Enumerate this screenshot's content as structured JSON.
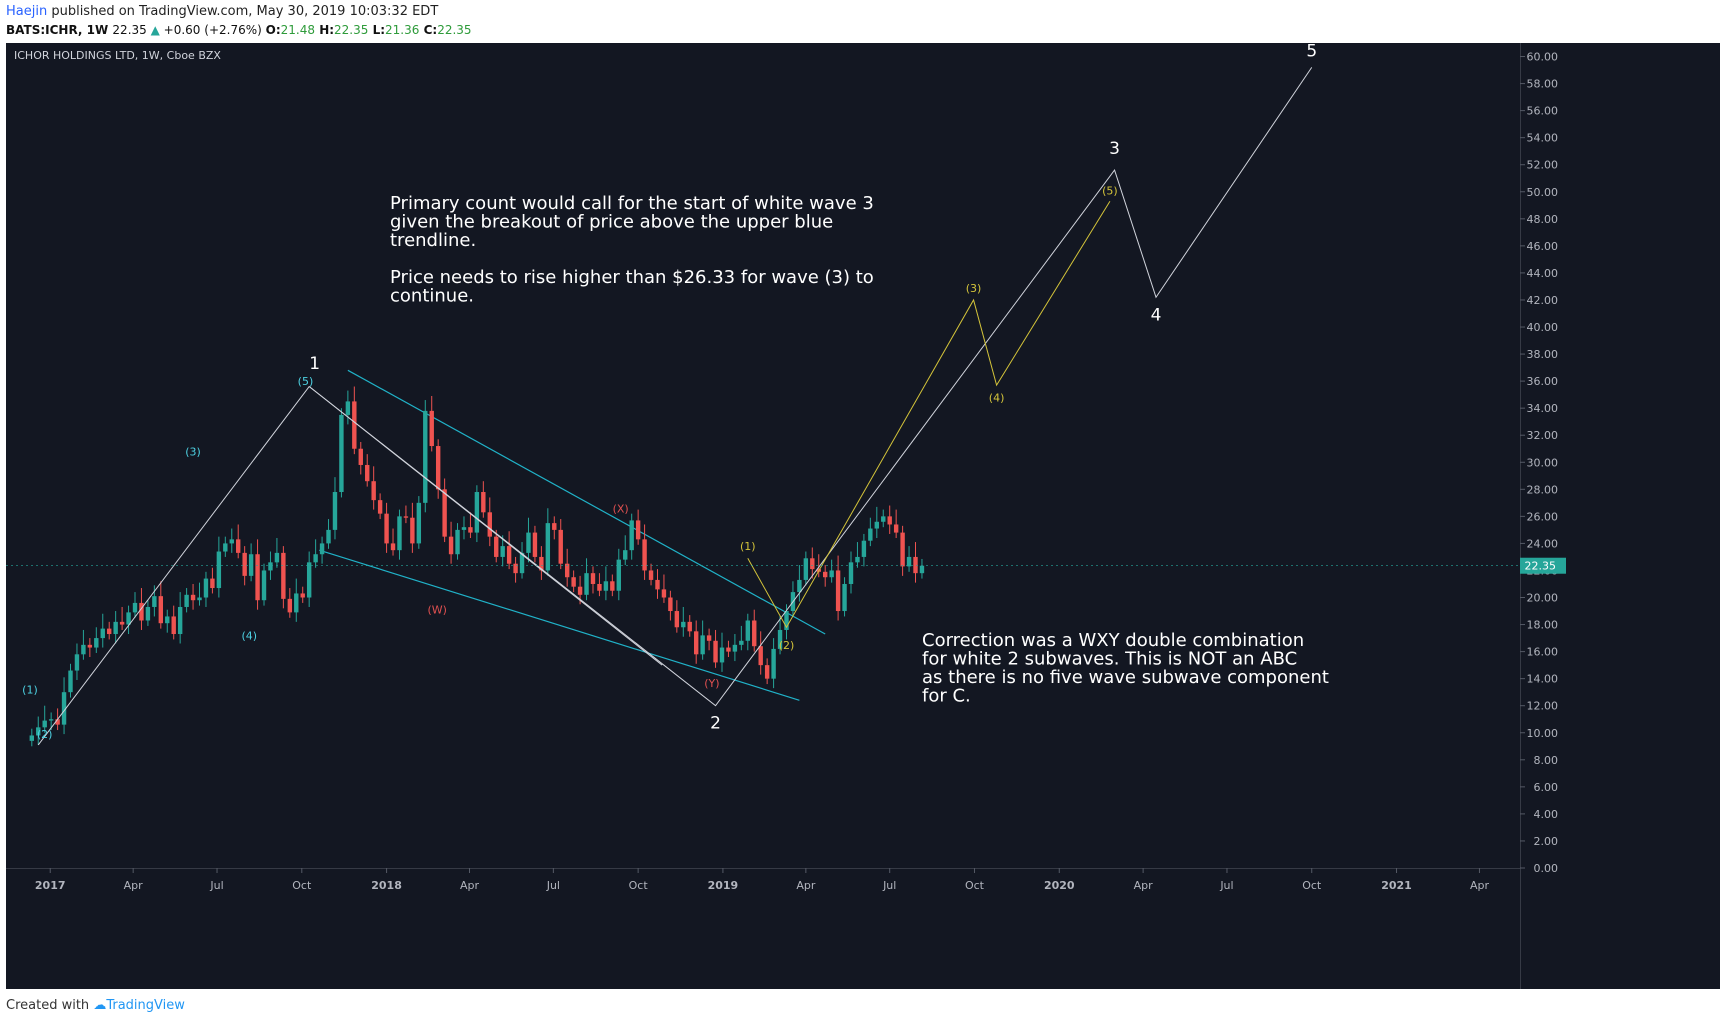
{
  "header": {
    "author": "Haejin",
    "published": "published on TradingView.com, May 30, 2019 10:03:32 EDT",
    "symbol_line": "BATS:ICHR, 1W",
    "last": "22.35",
    "change": "+0.60 (+2.76%)",
    "o_label": "O:",
    "o_val": "21.48",
    "h_label": "H:",
    "h_val": "22.35",
    "l_label": "L:",
    "l_val": "21.36",
    "c_label": "C:",
    "c_val": "22.35"
  },
  "footer": {
    "created_with": "Created with",
    "brand": "TradingView"
  },
  "colors": {
    "background": "#131722",
    "up": "#26a69a",
    "down": "#ef5350",
    "white_wave": "#d1d4dc",
    "yellow_wave": "#d4c43a",
    "trendline": "#20b2c8",
    "cyan_label": "#4dd0e1",
    "red_label": "#e05050"
  },
  "chart_data": {
    "type": "candlestick",
    "title": "ICHOR HOLDINGS LTD, 1W, Cboe BZX",
    "last_price_label": "22.35",
    "y_range": [
      0,
      61
    ],
    "y_ticks": [
      "0.00",
      "2.00",
      "4.00",
      "6.00",
      "8.00",
      "10.00",
      "12.00",
      "14.00",
      "16.00",
      "18.00",
      "20.00",
      "22.00",
      "24.00",
      "26.00",
      "28.00",
      "30.00",
      "32.00",
      "34.00",
      "36.00",
      "38.00",
      "40.00",
      "42.00",
      "44.00",
      "46.00",
      "48.00",
      "50.00",
      "52.00",
      "54.00",
      "56.00",
      "58.00",
      "60.00"
    ],
    "x_range": [
      "2016-11-14",
      "2021-05-15"
    ],
    "x_ticks": [
      {
        "date": "2017-01-01",
        "label": "2017"
      },
      {
        "date": "2017-04-01",
        "label": "Apr"
      },
      {
        "date": "2017-07-01",
        "label": "Jul"
      },
      {
        "date": "2017-10-01",
        "label": "Oct"
      },
      {
        "date": "2018-01-01",
        "label": "2018"
      },
      {
        "date": "2018-04-01",
        "label": "Apr"
      },
      {
        "date": "2018-07-01",
        "label": "Jul"
      },
      {
        "date": "2018-10-01",
        "label": "Oct"
      },
      {
        "date": "2019-01-01",
        "label": "2019"
      },
      {
        "date": "2019-04-01",
        "label": "Apr"
      },
      {
        "date": "2019-07-01",
        "label": "Jul"
      },
      {
        "date": "2019-10-01",
        "label": "Oct"
      },
      {
        "date": "2020-01-01",
        "label": "2020"
      },
      {
        "date": "2020-04-01",
        "label": "Apr"
      },
      {
        "date": "2020-07-01",
        "label": "Jul"
      },
      {
        "date": "2020-10-01",
        "label": "Oct"
      },
      {
        "date": "2021-01-01",
        "label": "2021"
      },
      {
        "date": "2021-04-01",
        "label": "Apr"
      }
    ],
    "weekly_closes": {
      "start_date": "2016-12-12",
      "interval_days": 7,
      "closes": [
        9.8,
        10.4,
        10.9,
        11.0,
        10.6,
        13.0,
        14.6,
        15.8,
        16.5,
        16.3,
        17.0,
        17.7,
        17.3,
        18.2,
        18.0,
        18.9,
        19.6,
        18.3,
        19.3,
        20.1,
        18.1,
        18.6,
        17.3,
        19.3,
        20.2,
        19.8,
        20.0,
        21.4,
        20.7,
        23.4,
        24.0,
        24.3,
        23.3,
        21.6,
        23.2,
        19.8,
        22.0,
        22.6,
        23.3,
        19.9,
        18.9,
        20.3,
        20.0,
        22.6,
        23.2,
        24.0,
        25.0,
        27.8,
        33.5,
        34.5,
        31.0,
        29.8,
        28.6,
        27.2,
        26.2,
        24.0,
        23.5,
        26.0,
        25.9,
        24.0,
        27.0,
        33.8,
        31.2,
        28.0,
        24.5,
        23.2,
        25.0,
        25.2,
        24.8,
        27.8,
        26.3,
        24.5,
        23.0,
        23.8,
        22.5,
        21.8,
        23.3,
        24.8,
        23.0,
        22.0,
        25.5,
        25.0,
        22.5,
        21.5,
        20.8,
        20.2,
        21.8,
        21.0,
        20.5,
        21.2,
        20.5,
        22.8,
        23.5,
        25.7,
        24.3,
        22.0,
        21.3,
        20.6,
        20.0,
        19.0,
        17.8,
        18.2,
        17.5,
        15.8,
        17.2,
        16.8,
        15.2,
        16.3,
        16.0,
        16.5,
        16.8,
        18.3,
        16.4,
        15.0,
        14.0,
        16.2,
        17.6,
        19.0,
        20.4,
        21.3,
        22.9,
        22.1,
        21.9,
        21.5,
        22.0,
        19.0,
        21.0,
        22.6,
        23.0,
        24.2,
        25.1,
        25.6,
        26.0,
        25.4,
        24.8,
        22.3,
        23.0,
        21.8,
        22.35
      ]
    },
    "wave_labels": {
      "w1": "1",
      "w2": "2",
      "w3": "3",
      "w4": "4",
      "w5": "5",
      "c1": "(1)",
      "c2": "(2)",
      "c3": "(3)",
      "c4": "(4)",
      "c5": "(5)",
      "rw": "(W)",
      "rx": "(X)",
      "ry": "(Y)",
      "y1": "(1)",
      "y2": "(2)",
      "y3": "(3)",
      "y4": "(4)",
      "y5": "(5)"
    },
    "white_wave_path": [
      {
        "d": "2016-12-19",
        "v": 9.1
      },
      {
        "d": "2017-10-09",
        "v": 35.6
      },
      {
        "d": "2018-12-24",
        "v": 12.0
      },
      {
        "d": "2020-03-01",
        "v": 51.6
      },
      {
        "d": "2020-04-15",
        "v": 42.2
      },
      {
        "d": "2020-10-01",
        "v": 59.2
      }
    ],
    "yellow_wave_path": [
      {
        "d": "2019-01-28",
        "v": 22.9
      },
      {
        "d": "2019-03-11",
        "v": 17.8
      },
      {
        "d": "2019-09-30",
        "v": 42.0
      },
      {
        "d": "2019-10-25",
        "v": 35.7
      },
      {
        "d": "2020-02-25",
        "v": 49.3
      }
    ],
    "wxy_path": [
      {
        "d": "2017-10-09",
        "v": 35.6
      },
      {
        "d": "2018-10-27",
        "v": 15.0
      }
    ],
    "trendlines": [
      {
        "from": {
          "d": "2017-11-20",
          "v": 36.8
        },
        "to": {
          "d": "2019-04-22",
          "v": 17.3
        }
      },
      {
        "from": {
          "d": "2017-10-20",
          "v": 23.5
        },
        "to": {
          "d": "2019-03-25",
          "v": 12.4
        }
      }
    ],
    "annotations": {
      "primary": [
        "Primary count would call for the start of white wave 3",
        "given the breakout of price above the upper blue",
        "trendline.",
        "",
        "Price needs to rise higher than $26.33 for wave (3) to",
        "continue."
      ],
      "correction": [
        "Correction was a WXY double combination",
        "for white 2 subwaves. This is NOT an ABC",
        "as there is no five wave subwave component",
        "for C."
      ]
    }
  }
}
